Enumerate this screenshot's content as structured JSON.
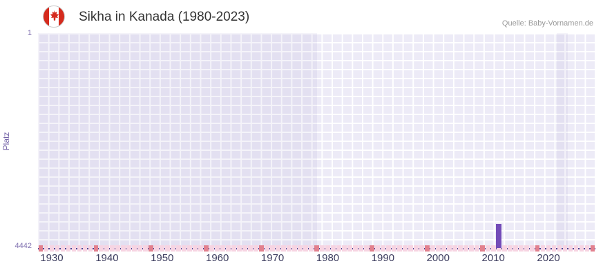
{
  "header": {
    "title": "Sikha in Kanada (1980-2023)",
    "source": "Quelle: Baby-Vornamen.de"
  },
  "chart_data": {
    "type": "bar",
    "title": "Sikha in Kanada (1980-2023)",
    "xlabel": "",
    "ylabel": "Platz",
    "y_axis": {
      "top_label": "1",
      "bottom_label": "4442",
      "min": 1,
      "max": 4442,
      "inverted": true
    },
    "x_ticks": [
      1930,
      1940,
      1950,
      1960,
      1970,
      1980,
      1990,
      2000,
      2010,
      2020
    ],
    "x_domain": [
      1927.5,
      2028.5
    ],
    "grid": true,
    "legend": false,
    "bars": [
      {
        "year": 2011,
        "value": 3944
      }
    ],
    "bar_color": "#744cb8",
    "shaded_regions": [
      {
        "from": 1927.5,
        "to": 1978
      },
      {
        "from": 2021.5,
        "to": 2023.5
      }
    ],
    "markers": {
      "light_years_range": [
        1928,
        2027
      ],
      "dark_years": [
        1928,
        1938,
        1948,
        1958,
        1968,
        1978,
        1988,
        1998,
        2008,
        2018,
        2028
      ],
      "light_color": "#f7d4e2",
      "dark_color": "#e2808e"
    },
    "colors": {
      "plot_background": "#edebf7",
      "grid_line": "#ffffff",
      "axis_line": "#4a3d8f",
      "accent_purple": "#744cb8"
    }
  }
}
